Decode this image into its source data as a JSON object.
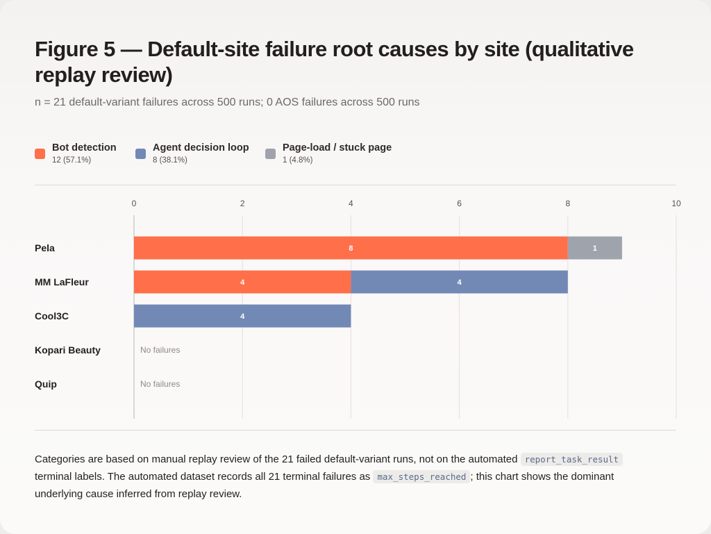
{
  "title": "Figure 5 — Default-site failure root causes by site (qualitative replay review)",
  "subtitle": "n = 21 default-variant failures across 500 runs; 0 AOS failures across 500 runs",
  "legend": [
    {
      "label": "Bot detection",
      "count": "12 (57.1%)",
      "color": "#fe6f4a"
    },
    {
      "label": "Agent decision loop",
      "count": "8 (38.1%)",
      "color": "#7289b5"
    },
    {
      "label": "Page-load / stuck page",
      "count": "1 (4.8%)",
      "color": "#9ea3ac"
    }
  ],
  "chart_data": {
    "type": "bar",
    "orientation": "horizontal",
    "stacked": true,
    "categories": [
      "Pela",
      "MM LaFleur",
      "Cool3C",
      "Kopari Beauty",
      "Quip"
    ],
    "series": [
      {
        "name": "Bot detection",
        "values": [
          8,
          4,
          0,
          0,
          0
        ],
        "color": "#fe6f4a"
      },
      {
        "name": "Agent decision loop",
        "values": [
          0,
          4,
          4,
          0,
          0
        ],
        "color": "#7289b5"
      },
      {
        "name": "Page-load / stuck page",
        "values": [
          1,
          0,
          0,
          0,
          0
        ],
        "color": "#9ea3ac"
      }
    ],
    "xlim": [
      0,
      10
    ],
    "xticks": [
      0,
      2,
      4,
      6,
      8,
      10
    ],
    "grid": true,
    "tick_position": "top",
    "empty_label": "No failures"
  },
  "footnote": {
    "part1": "Categories are based on manual replay review of the 21 failed default-variant runs, not on the automated ",
    "code1": "report_task_result",
    "part2": " terminal labels. The automated dataset records all 21 terminal failures as ",
    "code2": "max_steps_reached",
    "part3": "; this chart shows the dominant underlying cause inferred from replay review."
  }
}
